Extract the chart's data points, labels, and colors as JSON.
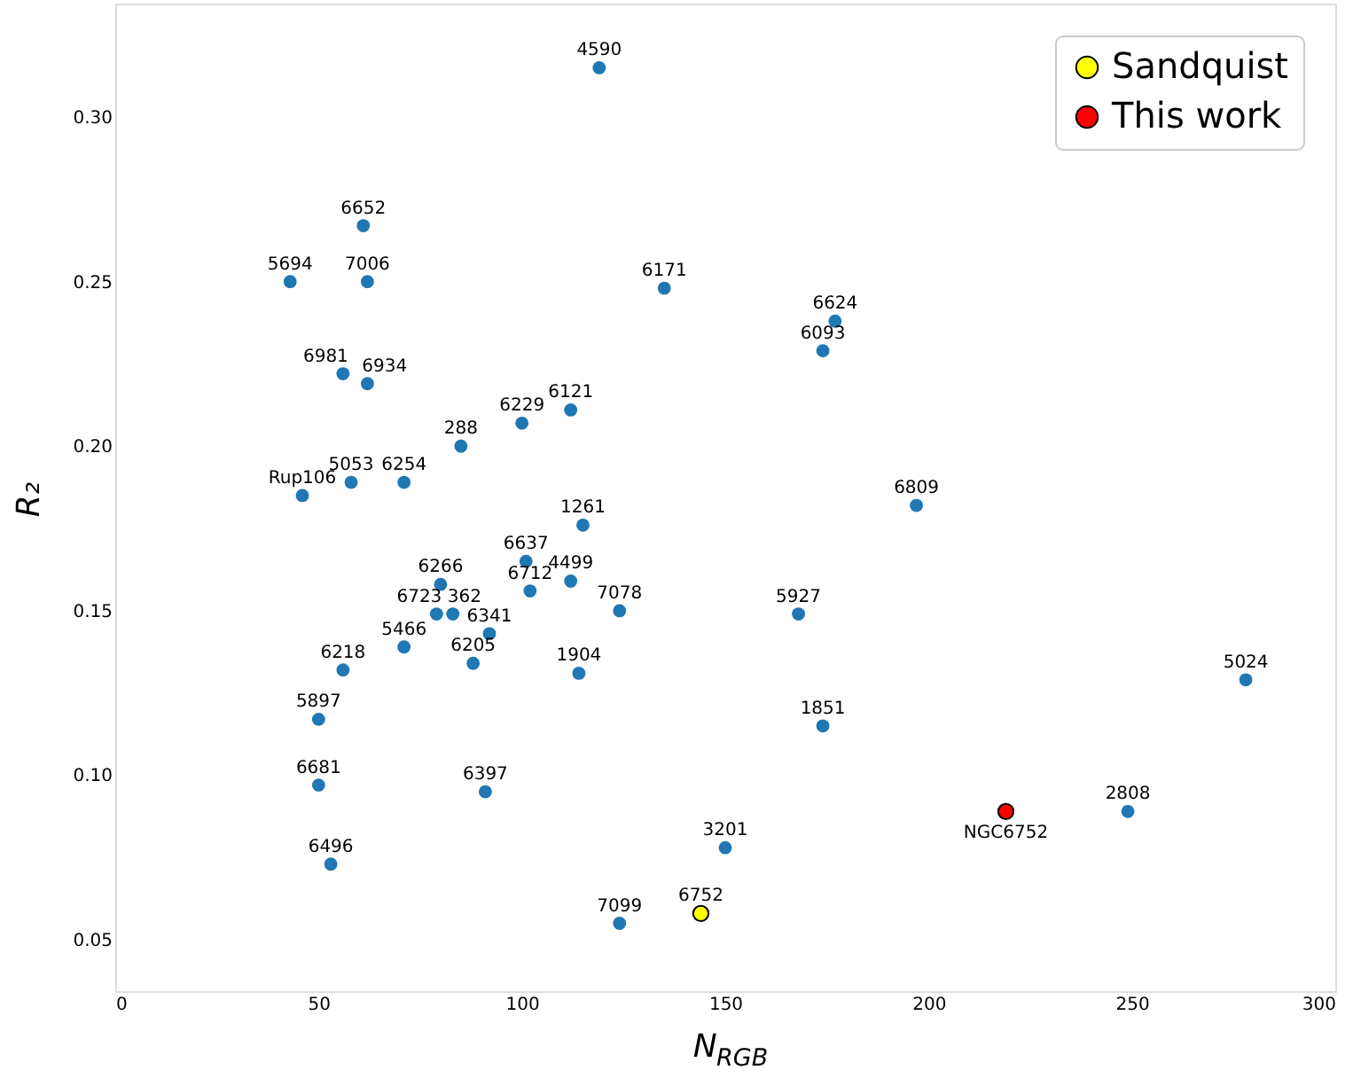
{
  "chart_data": {
    "type": "scatter",
    "xlabel": "N$_{RGB}$",
    "ylabel": "R₂",
    "xlim": [
      0,
      300
    ],
    "xticks": [
      0,
      50,
      100,
      150,
      200,
      250,
      300
    ],
    "ylim": [
      0.0344,
      0.3345
    ],
    "yticks": [
      {
        "value": 0.05,
        "label": "0.05"
      },
      {
        "value": 0.1,
        "label": "0.10"
      },
      {
        "value": 0.15,
        "label": "0.15"
      },
      {
        "value": 0.2,
        "label": "0.20"
      },
      {
        "value": 0.25,
        "label": "0.25"
      },
      {
        "value": 0.3,
        "label": "0.30"
      }
    ],
    "grid": false,
    "legend": "top right",
    "marker": "circle",
    "series": [
      {
        "color": "#1f77b4",
        "x": [
          119,
          61,
          43,
          62,
          135,
          177,
          174,
          56,
          62,
          112,
          100,
          85,
          58,
          71,
          46,
          197,
          115,
          101,
          112,
          80,
          102,
          124,
          168,
          79,
          83,
          92,
          71,
          56,
          88,
          114,
          278,
          50,
          174,
          50,
          91,
          249,
          150,
          53,
          124
        ],
        "values": [
          0.315,
          0.267,
          0.25,
          0.25,
          0.248,
          0.238,
          0.229,
          0.222,
          0.219,
          0.211,
          0.207,
          0.2,
          0.189,
          0.189,
          0.185,
          0.182,
          0.176,
          0.165,
          0.159,
          0.158,
          0.156,
          0.15,
          0.149,
          0.149,
          0.149,
          0.143,
          0.139,
          0.132,
          0.134,
          0.131,
          0.129,
          0.117,
          0.115,
          0.097,
          0.095,
          0.089,
          0.078,
          0.073,
          0.055
        ]
      },
      {
        "name": "Sandquist",
        "color": "#ffff00",
        "x": [
          144
        ],
        "values": [
          0.058
        ]
      },
      {
        "name": "This work",
        "color": "#ff0000",
        "x": [
          219
        ],
        "values": [
          0.089
        ]
      }
    ],
    "annotations": [
      {
        "text": "4590",
        "x": 119,
        "y": 0.315
      },
      {
        "text": "6652",
        "x": 61,
        "y": 0.267
      },
      {
        "text": "5694",
        "x": 43,
        "y": 0.25
      },
      {
        "text": "7006",
        "x": 62,
        "y": 0.25
      },
      {
        "text": "6171",
        "x": 135,
        "y": 0.248
      },
      {
        "text": "6624",
        "x": 177,
        "y": 0.238
      },
      {
        "text": "6093",
        "x": 174,
        "y": 0.229
      },
      {
        "text": "6981",
        "x": 56,
        "y": 0.222
      },
      {
        "text": "6934",
        "x": 62,
        "y": 0.219
      },
      {
        "text": "6121",
        "x": 112,
        "y": 0.211
      },
      {
        "text": "6229",
        "x": 100,
        "y": 0.207
      },
      {
        "text": "288",
        "x": 85,
        "y": 0.2
      },
      {
        "text": "5053",
        "x": 58,
        "y": 0.189
      },
      {
        "text": "6254",
        "x": 71,
        "y": 0.189
      },
      {
        "text": "Rup106",
        "x": 46,
        "y": 0.185
      },
      {
        "text": "6809",
        "x": 197,
        "y": 0.182
      },
      {
        "text": "1261",
        "x": 115,
        "y": 0.176
      },
      {
        "text": "6637",
        "x": 101,
        "y": 0.165
      },
      {
        "text": "4499",
        "x": 112,
        "y": 0.159
      },
      {
        "text": "6266",
        "x": 80,
        "y": 0.158
      },
      {
        "text": "6712",
        "x": 102,
        "y": 0.156
      },
      {
        "text": "7078",
        "x": 124,
        "y": 0.15
      },
      {
        "text": "5927",
        "x": 168,
        "y": 0.149
      },
      {
        "text": "6723",
        "x": 79,
        "y": 0.149
      },
      {
        "text": "362",
        "x": 83,
        "y": 0.149
      },
      {
        "text": "6341",
        "x": 92,
        "y": 0.143
      },
      {
        "text": "5466",
        "x": 71,
        "y": 0.139
      },
      {
        "text": "6218",
        "x": 56,
        "y": 0.132
      },
      {
        "text": "6205",
        "x": 88,
        "y": 0.134
      },
      {
        "text": "1904",
        "x": 114,
        "y": 0.131
      },
      {
        "text": "5024",
        "x": 278,
        "y": 0.129
      },
      {
        "text": "5897",
        "x": 50,
        "y": 0.117
      },
      {
        "text": "1851",
        "x": 174,
        "y": 0.115
      },
      {
        "text": "6681",
        "x": 50,
        "y": 0.097
      },
      {
        "text": "6397",
        "x": 91,
        "y": 0.095
      },
      {
        "text": "2808",
        "x": 249,
        "y": 0.089
      },
      {
        "text": "3201",
        "x": 150,
        "y": 0.078
      },
      {
        "text": "6496",
        "x": 53,
        "y": 0.073
      },
      {
        "text": "7099",
        "x": 124,
        "y": 0.055
      },
      {
        "text": "6752",
        "x": 144,
        "y": 0.058
      },
      {
        "text": "NGC6752",
        "x": 219,
        "y": 0.089
      }
    ]
  }
}
